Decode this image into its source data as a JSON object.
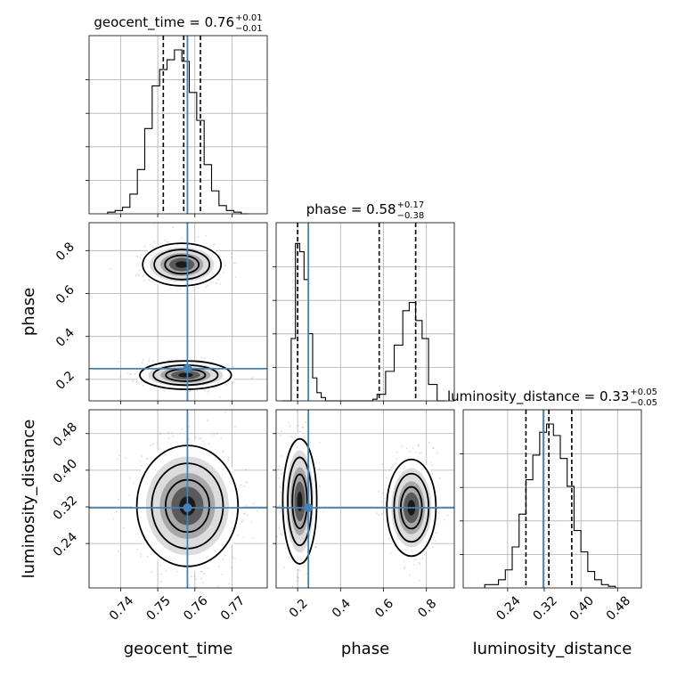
{
  "chart_data": {
    "type": "corner",
    "parameters": [
      "geocent_time",
      "phase",
      "luminosity_distance"
    ],
    "truths": [
      0.758,
      0.25,
      0.318
    ],
    "axis_ranges": {
      "geocent_time": [
        0.7315,
        0.7795
      ],
      "phase": [
        0.1,
        0.93
      ],
      "luminosity_distance": [
        0.143,
        0.532
      ]
    },
    "ticks": {
      "geocent_time": [
        0.74,
        0.75,
        0.76,
        0.77
      ],
      "phase": [
        0.2,
        0.4,
        0.6,
        0.8
      ],
      "luminosity_distance": [
        0.24,
        0.32,
        0.4,
        0.48
      ]
    },
    "tick_labels": {
      "geocent_time": [
        "0.74",
        "0.75",
        "0.76",
        "0.77"
      ],
      "phase": [
        "0.2",
        "0.4",
        "0.6",
        "0.8"
      ],
      "luminosity_distance": [
        "0.24",
        "0.32",
        "0.40",
        "0.48"
      ]
    },
    "titles": {
      "geocent_time": {
        "prefix": "geocent_time = 0.76",
        "plus": "+0.01",
        "minus": "−0.01"
      },
      "phase": {
        "prefix": "phase = 0.58",
        "plus": "+0.17",
        "minus": "−0.38"
      },
      "luminosity_distance": {
        "prefix": "luminosity_distance = 0.33",
        "plus": "+0.05",
        "minus": "−0.05"
      }
    },
    "quantile_lines": {
      "geocent_time": [
        0.7515,
        0.757,
        0.7615
      ],
      "phase": [
        0.2,
        0.58,
        0.75
      ],
      "luminosity_distance": [
        0.28,
        0.33,
        0.38
      ]
    },
    "histograms": {
      "geocent_time": {
        "edges": [
          0.7365,
          0.7385,
          0.7405,
          0.7425,
          0.7445,
          0.7465,
          0.7485,
          0.7505,
          0.7525,
          0.7545,
          0.7565,
          0.7585,
          0.7605,
          0.7625,
          0.7645,
          0.7665,
          0.7685,
          0.7705,
          0.7725,
          0.7745
        ],
        "counts": [
          0.01,
          0.02,
          0.04,
          0.12,
          0.27,
          0.52,
          0.78,
          0.88,
          0.94,
          1.0,
          0.93,
          0.74,
          0.57,
          0.3,
          0.14,
          0.05,
          0.02,
          0.01,
          0.0
        ]
      },
      "phase": {
        "edges": [
          0.13,
          0.17,
          0.19,
          0.21,
          0.23,
          0.25,
          0.27,
          0.29,
          0.31,
          0.33,
          0.35,
          0.55,
          0.57,
          0.61,
          0.65,
          0.69,
          0.72,
          0.75,
          0.78,
          0.81,
          0.85,
          0.89
        ],
        "counts": [
          0.0,
          0.38,
          0.96,
          0.91,
          0.74,
          0.41,
          0.14,
          0.05,
          0.02,
          0.0,
          0.0,
          0.01,
          0.04,
          0.18,
          0.34,
          0.55,
          0.6,
          0.49,
          0.38,
          0.1,
          0.0
        ]
      },
      "luminosity_distance": {
        "edges": [
          0.19,
          0.22,
          0.235,
          0.25,
          0.265,
          0.28,
          0.295,
          0.31,
          0.325,
          0.34,
          0.355,
          0.37,
          0.385,
          0.4,
          0.415,
          0.43,
          0.445,
          0.46,
          0.475
        ],
        "counts": [
          0.02,
          0.05,
          0.11,
          0.25,
          0.45,
          0.66,
          0.81,
          0.95,
          1.0,
          0.93,
          0.79,
          0.62,
          0.35,
          0.22,
          0.1,
          0.05,
          0.02,
          0.01
        ]
      }
    },
    "pairs": [
      {
        "x": "geocent_time",
        "y": "phase",
        "blobs": [
          {
            "cx": 0.7565,
            "cy": 0.735,
            "sx": 0.0048,
            "sy": 0.045,
            "n": 700
          },
          {
            "cx": 0.7575,
            "cy": 0.22,
            "sx": 0.0056,
            "sy": 0.03,
            "n": 700
          }
        ]
      },
      {
        "x": "geocent_time",
        "y": "luminosity_distance",
        "blobs": [
          {
            "cx": 0.758,
            "cy": 0.322,
            "sx": 0.0062,
            "sy": 0.06,
            "n": 1600
          }
        ]
      },
      {
        "x": "phase",
        "y": "luminosity_distance",
        "blobs": [
          {
            "cx": 0.21,
            "cy": 0.332,
            "sx": 0.036,
            "sy": 0.062,
            "n": 800
          },
          {
            "cx": 0.73,
            "cy": 0.318,
            "sx": 0.052,
            "sy": 0.048,
            "n": 800
          }
        ]
      }
    ],
    "grid": true
  }
}
